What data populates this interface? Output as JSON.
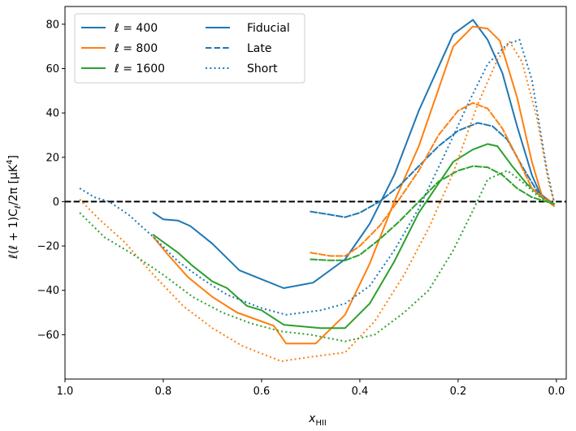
{
  "chart_data": {
    "type": "line",
    "title": "",
    "xlabel": "x",
    "xlabel_sub": "HII",
    "ylabel": "ℓ(ℓ + 1)C_ℓ/2π [μK⁴]",
    "ylabel_parts": {
      "main": "ℓ(ℓ + 1)C",
      "sub": "ℓ",
      "mid": "/2π [μK",
      "sup": "4",
      "end": "]"
    },
    "xlim": [
      1.0,
      -0.02
    ],
    "ylim": [
      -80,
      88
    ],
    "xticks": [
      1.0,
      0.8,
      0.6,
      0.4,
      0.2,
      0.0
    ],
    "xtick_labels": [
      "1.0",
      "0.8",
      "0.6",
      "0.4",
      "0.2",
      "0.0"
    ],
    "yticks": [
      -60,
      -40,
      -20,
      0,
      20,
      40,
      60,
      80
    ],
    "ytick_labels": [
      "−60",
      "−40",
      "−20",
      "0",
      "20",
      "40",
      "60",
      "80"
    ],
    "grid": false,
    "reference_line": {
      "y": 0,
      "color": "#000000",
      "style": "dashed"
    },
    "legend": {
      "placement": "top-left",
      "ell_entries": [
        {
          "label": "ℓ = 400",
          "color": "#1f77b4"
        },
        {
          "label": "ℓ = 800",
          "color": "#ff7f0e"
        },
        {
          "label": "ℓ = 1600",
          "color": "#2ca02c"
        }
      ],
      "style_entries": [
        {
          "label": "Fiducial",
          "style": "solid",
          "color": "#1f77b4"
        },
        {
          "label": "Late",
          "style": "dashed",
          "color": "#1f77b4"
        },
        {
          "label": "Short",
          "style": "dotted",
          "color": "#1f77b4"
        }
      ]
    },
    "series": [
      {
        "name": "ℓ = 400 Fiducial",
        "color": "#1f77b4",
        "style": "solid",
        "x": [
          0.82,
          0.8,
          0.77,
          0.745,
          0.7,
          0.645,
          0.6,
          0.555,
          0.495,
          0.43,
          0.38,
          0.33,
          0.28,
          0.21,
          0.17,
          0.14,
          0.11,
          0.08,
          0.05,
          0.03,
          0.005
        ],
        "y": [
          -5,
          -8,
          -8.5,
          -11,
          -19,
          -31,
          -35,
          -39,
          -36.5,
          -26,
          -10,
          12,
          41,
          75.5,
          82,
          73,
          58,
          34,
          12,
          2,
          -1
        ]
      },
      {
        "name": "ℓ = 800 Fiducial",
        "color": "#ff7f0e",
        "style": "solid",
        "x": [
          0.82,
          0.79,
          0.75,
          0.7,
          0.65,
          0.6,
          0.575,
          0.55,
          0.49,
          0.43,
          0.38,
          0.33,
          0.28,
          0.21,
          0.17,
          0.14,
          0.115,
          0.08,
          0.05,
          0.03,
          0.005
        ],
        "y": [
          -16,
          -24,
          -34,
          -43,
          -50,
          -54,
          -56,
          -64,
          -64,
          -51,
          -28,
          0,
          25,
          70,
          79,
          78,
          72.5,
          47,
          18,
          3,
          -1
        ]
      },
      {
        "name": "ℓ = 1600 Fiducial",
        "color": "#2ca02c",
        "style": "solid",
        "x": [
          0.82,
          0.77,
          0.74,
          0.7,
          0.67,
          0.63,
          0.6,
          0.555,
          0.48,
          0.43,
          0.38,
          0.33,
          0.28,
          0.21,
          0.17,
          0.14,
          0.12,
          0.09,
          0.06,
          0.03,
          0.005
        ],
        "y": [
          -15,
          -23,
          -29,
          -36,
          -39,
          -47,
          -49,
          -55.5,
          -57,
          -57,
          -46,
          -27,
          -5,
          18,
          23.5,
          26,
          25,
          16,
          8,
          2,
          -1
        ]
      },
      {
        "name": "ℓ = 400 Late",
        "color": "#1f77b4",
        "style": "dashed",
        "x": [
          0.5,
          0.47,
          0.43,
          0.4,
          0.36,
          0.32,
          0.28,
          0.24,
          0.2,
          0.16,
          0.13,
          0.1,
          0.07,
          0.04,
          0.005
        ],
        "y": [
          -4.5,
          -5.5,
          -7,
          -5,
          0,
          7,
          16,
          25,
          32,
          35.5,
          34,
          28,
          16,
          5,
          -2
        ]
      },
      {
        "name": "ℓ = 800 Late",
        "color": "#ff7f0e",
        "style": "dashed",
        "x": [
          0.5,
          0.46,
          0.43,
          0.4,
          0.36,
          0.32,
          0.28,
          0.24,
          0.2,
          0.17,
          0.14,
          0.11,
          0.08,
          0.05,
          0.005
        ],
        "y": [
          -23,
          -24.5,
          -24.5,
          -20,
          -11,
          1,
          14,
          30,
          41,
          44.5,
          42,
          33,
          20,
          6,
          -2
        ]
      },
      {
        "name": "ℓ = 1600 Late",
        "color": "#2ca02c",
        "style": "dashed",
        "x": [
          0.5,
          0.46,
          0.43,
          0.4,
          0.36,
          0.32,
          0.28,
          0.24,
          0.2,
          0.17,
          0.14,
          0.11,
          0.08,
          0.05,
          0.005
        ],
        "y": [
          -26,
          -26.5,
          -26.5,
          -24,
          -17,
          -9,
          0,
          9,
          14,
          16,
          15.5,
          12,
          6,
          2,
          -1
        ]
      },
      {
        "name": "ℓ = 400 Short",
        "color": "#1f77b4",
        "style": "dotted",
        "x": [
          0.97,
          0.94,
          0.91,
          0.87,
          0.82,
          0.77,
          0.72,
          0.67,
          0.6,
          0.55,
          0.48,
          0.43,
          0.38,
          0.33,
          0.28,
          0.23,
          0.18,
          0.14,
          0.1,
          0.075,
          0.05,
          0.02,
          0.005
        ],
        "y": [
          6,
          2,
          0,
          -6,
          -16,
          -27,
          -35,
          -42,
          -48,
          -51,
          -49,
          -46,
          -38,
          -22,
          -3,
          20,
          44,
          62,
          71,
          73,
          55,
          15,
          0
        ]
      },
      {
        "name": "ℓ = 800 Short",
        "color": "#ff7f0e",
        "style": "dotted",
        "x": [
          0.97,
          0.93,
          0.88,
          0.82,
          0.76,
          0.7,
          0.64,
          0.56,
          0.5,
          0.43,
          0.37,
          0.31,
          0.26,
          0.21,
          0.16,
          0.12,
          0.095,
          0.07,
          0.04,
          0.015,
          0.005
        ],
        "y": [
          1,
          -8,
          -18,
          -33,
          -47,
          -57,
          -65,
          -72,
          -70,
          -68,
          -54,
          -33,
          -12,
          13,
          44,
          64,
          72,
          63,
          38,
          8,
          0
        ]
      },
      {
        "name": "ℓ = 1600 Short",
        "color": "#2ca02c",
        "style": "dotted",
        "x": [
          0.97,
          0.92,
          0.86,
          0.8,
          0.74,
          0.68,
          0.62,
          0.56,
          0.5,
          0.43,
          0.37,
          0.31,
          0.26,
          0.21,
          0.17,
          0.14,
          0.1,
          0.07,
          0.04,
          0.01
        ],
        "y": [
          -5,
          -16,
          -24,
          -33,
          -43,
          -50,
          -55,
          -58.5,
          -60,
          -63,
          -60,
          -50,
          -40,
          -22,
          -4,
          10,
          14,
          9,
          3,
          -1
        ]
      }
    ]
  }
}
